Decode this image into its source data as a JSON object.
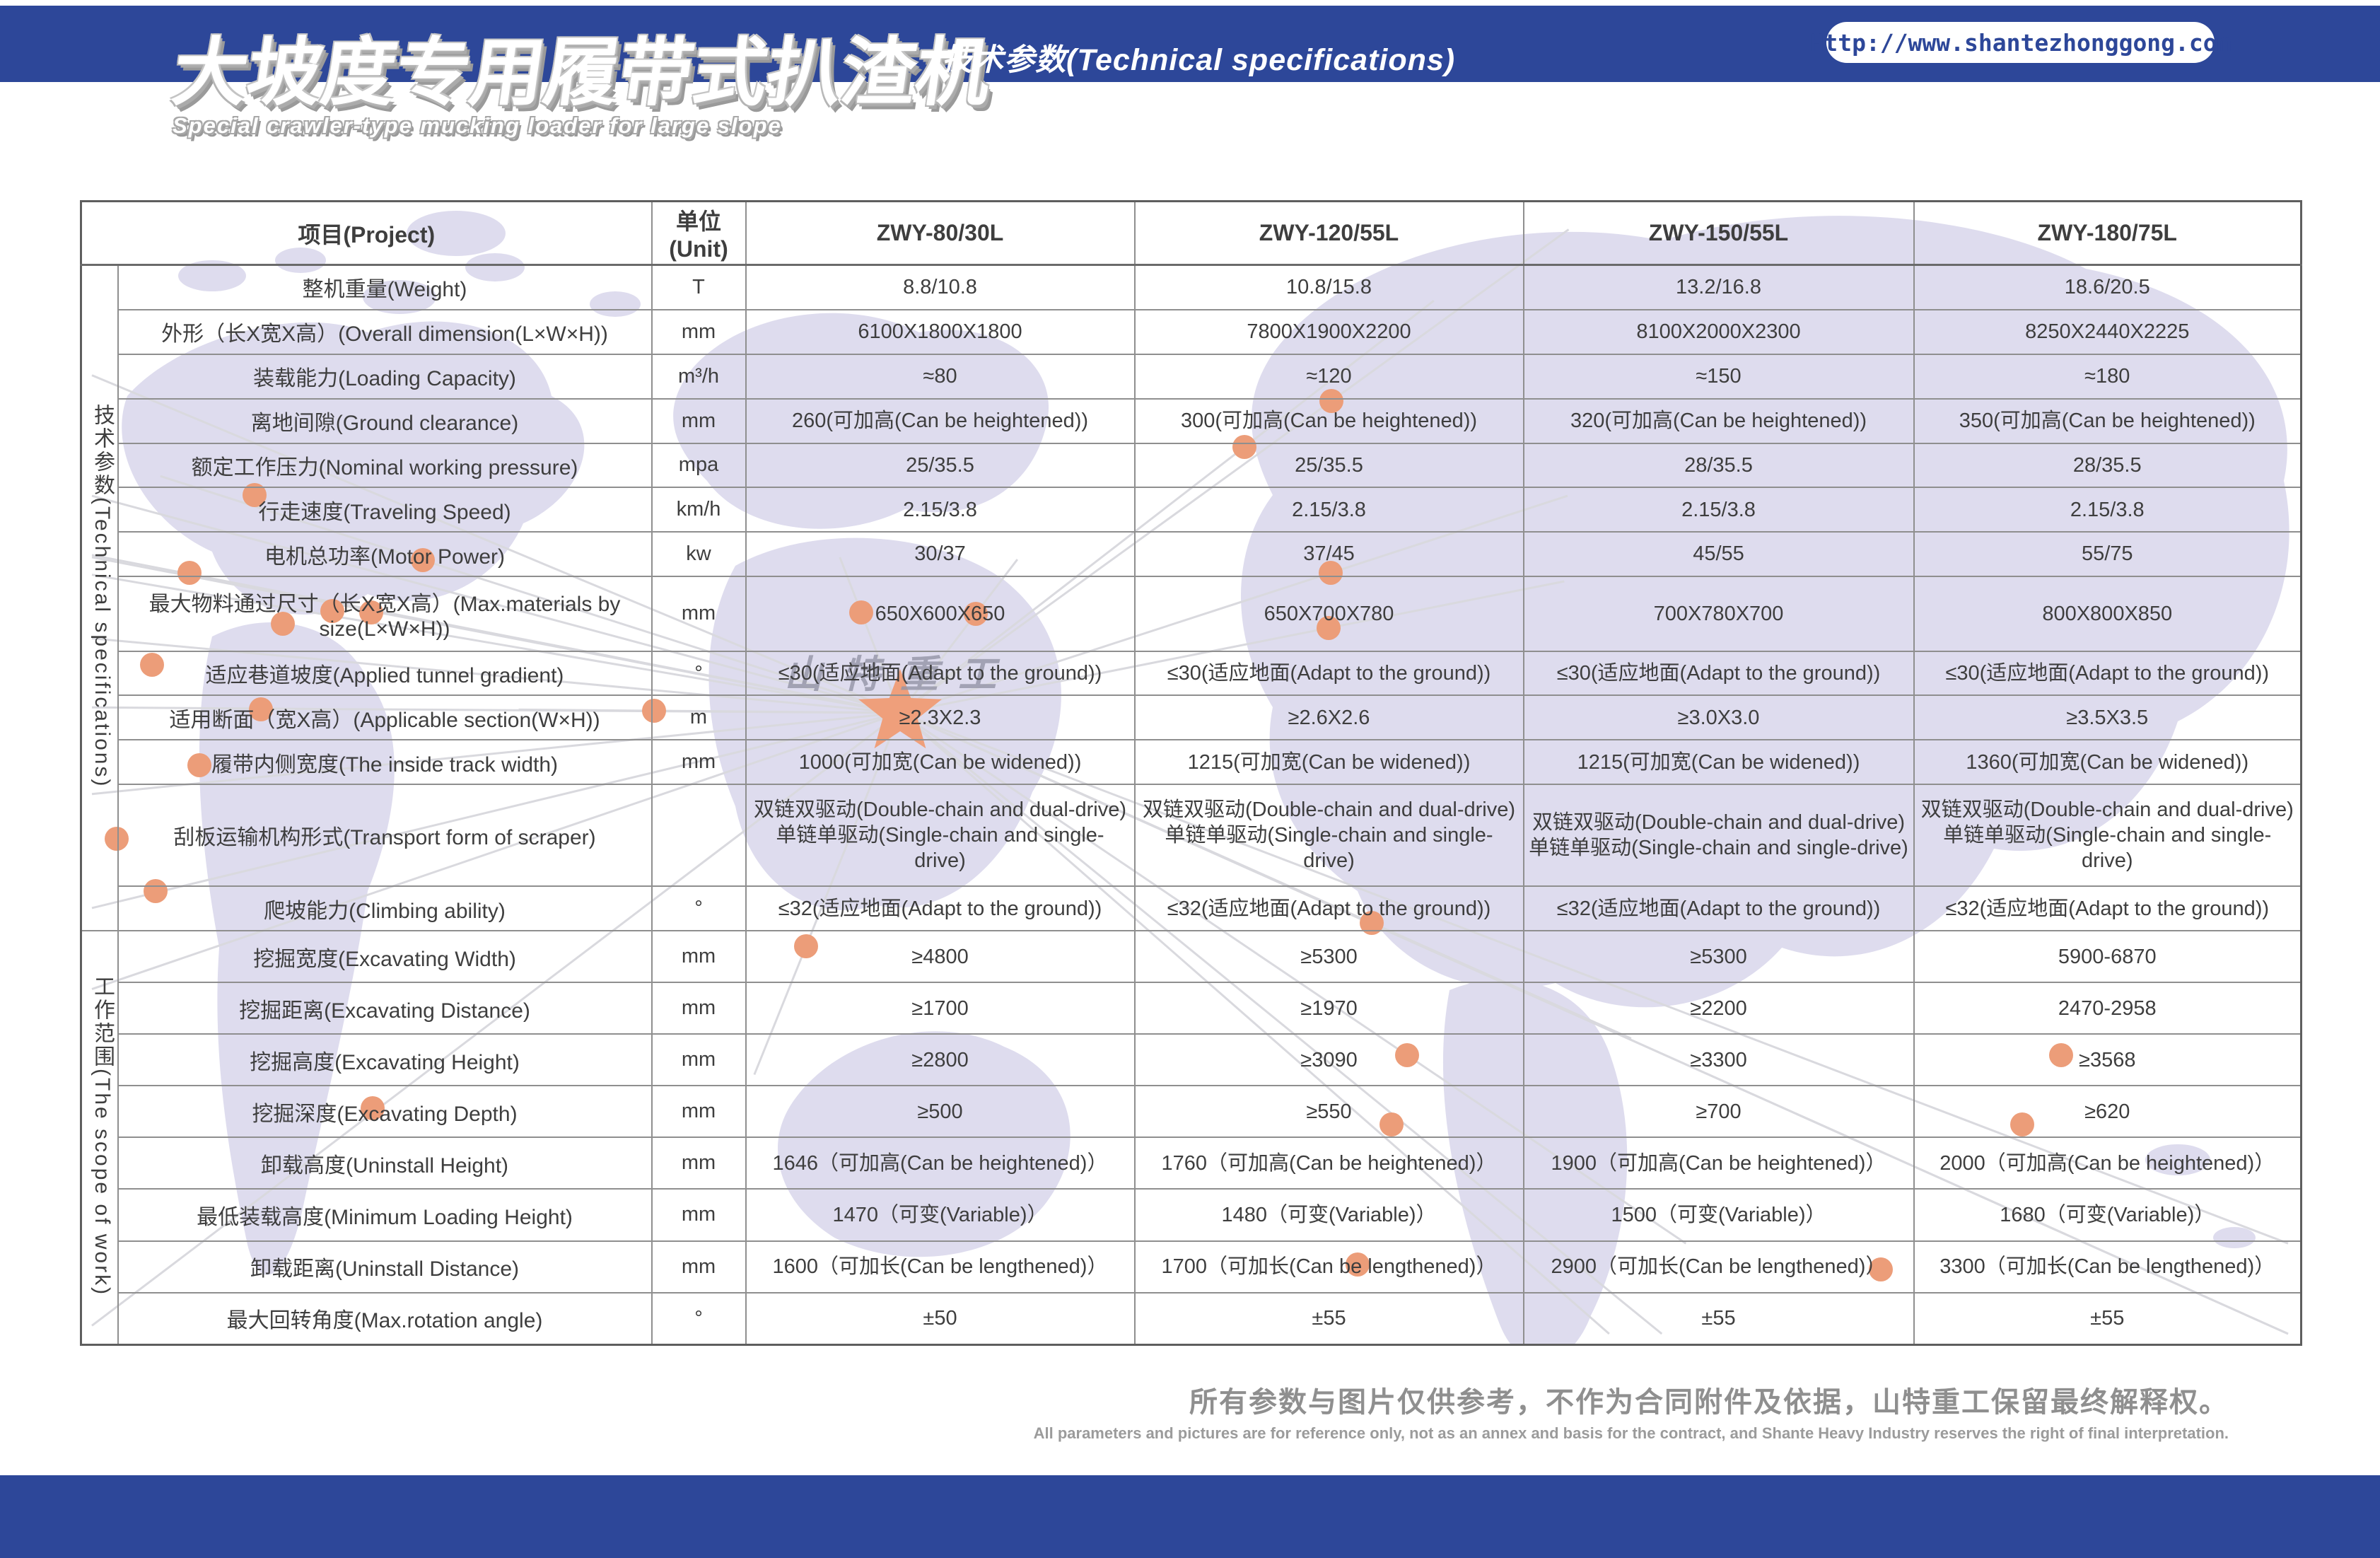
{
  "header": {
    "title_cn": "大坡度专用履带式扒渣机",
    "title_en": "Special crawler-type mucking loader for large slope",
    "tech_params_title": "技术参数(Technical specifications)",
    "website": "Http://www.shantezhonggong.com"
  },
  "watermark": "山特重工",
  "table": {
    "columns": [
      "项目(Project)",
      "单位(Unit)",
      "ZWY-80/30L",
      "ZWY-120/55L",
      "ZWY-150/55L",
      "ZWY-180/75L"
    ],
    "sections": [
      {
        "label": "技术参数(Technical specifications)",
        "rows": [
          {
            "project": "整机重量(Weight)",
            "unit": "T",
            "values": [
              "8.8/10.8",
              "10.8/15.8",
              "13.2/16.8",
              "18.6/20.5"
            ]
          },
          {
            "project": "外形（长X宽X高）(Overall dimension(L×W×H))",
            "unit": "mm",
            "values": [
              "6100X1800X1800",
              "7800X1900X2200",
              "8100X2000X2300",
              "8250X2440X2225"
            ]
          },
          {
            "project": "装载能力(Loading Capacity)",
            "unit": "m³/h",
            "values": [
              "≈80",
              "≈120",
              "≈150",
              "≈180"
            ]
          },
          {
            "project": "离地间隙(Ground clearance)",
            "unit": "mm",
            "values": [
              "260(可加高(Can be heightened))",
              "300(可加高(Can be heightened))",
              "320(可加高(Can be heightened))",
              "350(可加高(Can be heightened))"
            ]
          },
          {
            "project": "额定工作压力(Nominal working pressure)",
            "unit": "mpa",
            "values": [
              "25/35.5",
              "25/35.5",
              "28/35.5",
              "28/35.5"
            ]
          },
          {
            "project": "行走速度(Traveling Speed)",
            "unit": "km/h",
            "values": [
              "2.15/3.8",
              "2.15/3.8",
              "2.15/3.8",
              "2.15/3.8"
            ]
          },
          {
            "project": "电机总功率(Motor Power)",
            "unit": "kw",
            "values": [
              "30/37",
              "37/45",
              "45/55",
              "55/75"
            ]
          },
          {
            "project": "最大物料通过尺寸（长X宽X高）(Max.materials by size(L×W×H))",
            "unit": "mm",
            "values": [
              "650X600X650",
              "650X700X780",
              "700X780X700",
              "800X800X850"
            ]
          },
          {
            "project": "适应巷道坡度(Applied tunnel gradient)",
            "unit": "°",
            "values": [
              "≤30(适应地面(Adapt to the ground))",
              "≤30(适应地面(Adapt to the ground))",
              "≤30(适应地面(Adapt to the ground))",
              "≤30(适应地面(Adapt to the ground))"
            ]
          },
          {
            "project": "适用断面（宽X高）(Applicable section(W×H))",
            "unit": "m",
            "values": [
              "≥2.3X2.3",
              "≥2.6X2.6",
              "≥3.0X3.0",
              "≥3.5X3.5"
            ]
          },
          {
            "project": "履带内侧宽度(The inside track width)",
            "unit": "mm",
            "values": [
              "1000(可加宽(Can be widened))",
              "1215(可加宽(Can be widened))",
              "1215(可加宽(Can be widened))",
              "1360(可加宽(Can be widened))"
            ]
          },
          {
            "project": "刮板运输机构形式(Transport form of scraper)",
            "unit": "",
            "values": [
              "双链双驱动(Double-chain and dual-drive)\n单链单驱动(Single-chain and single-drive)",
              "双链双驱动(Double-chain and dual-drive)\n单链单驱动(Single-chain and single-drive)",
              "双链双驱动(Double-chain and dual-drive)\n单链单驱动(Single-chain and single-drive)",
              "双链双驱动(Double-chain and dual-drive)\n单链单驱动(Single-chain and single-drive)"
            ]
          },
          {
            "project": "爬坡能力(Climbing ability)",
            "unit": "°",
            "values": [
              "≤32(适应地面(Adapt to the ground))",
              "≤32(适应地面(Adapt to the ground))",
              "≤32(适应地面(Adapt to the ground))",
              "≤32(适应地面(Adapt to the ground))"
            ]
          }
        ]
      },
      {
        "label": "工作范围(The scope of work)",
        "rows": [
          {
            "project": "挖掘宽度(Excavating Width)",
            "unit": "mm",
            "values": [
              "≥4800",
              "≥5300",
              "≥5300",
              "5900-6870"
            ]
          },
          {
            "project": "挖掘距离(Excavating Distance)",
            "unit": "mm",
            "values": [
              "≥1700",
              "≥1970",
              "≥2200",
              "2470-2958"
            ]
          },
          {
            "project": "挖掘高度(Excavating Height)",
            "unit": "mm",
            "values": [
              "≥2800",
              "≥3090",
              "≥3300",
              "≥3568"
            ]
          },
          {
            "project": "挖掘深度(Excavating Depth)",
            "unit": "mm",
            "values": [
              "≥500",
              "≥550",
              "≥700",
              "≥620"
            ]
          },
          {
            "project": "卸载高度(Uninstall Height)",
            "unit": "mm",
            "values": [
              "1646（可加高(Can be heightened)）",
              "1760（可加高(Can be heightened)）",
              "1900（可加高(Can be heightened)）",
              "2000（可加高(Can be heightened)）"
            ]
          },
          {
            "project": "最低装载高度(Minimum Loading Height)",
            "unit": "mm",
            "values": [
              "1470（可变(Variable)）",
              "1480（可变(Variable)）",
              "1500（可变(Variable)）",
              "1680（可变(Variable)）"
            ]
          },
          {
            "project": "卸载距离(Uninstall Distance)",
            "unit": "mm",
            "values": [
              "1600（可加长(Can be lengthened)）",
              "1700（可加长(Can be lengthened)）",
              "2900（可加长(Can be lengthened)）",
              "3300（可加长(Can be lengthened)）"
            ]
          },
          {
            "project": "最大回转角度(Max.rotation angle)",
            "unit": "°",
            "values": [
              "±50",
              "±55",
              "±55",
              "±55"
            ]
          }
        ]
      }
    ]
  },
  "footer": {
    "disclaimer_cn": "所有参数与图片仅供参考，不作为合同附件及依据，山特重工保留最终解释权。",
    "disclaimer_en": "All parameters and pictures are for reference only, not as an annex and basis for the contract, and Shante Heavy Industry reserves the right of final interpretation."
  },
  "colors": {
    "brand_blue": "#2d4799",
    "dot_orange": "#ec9d79",
    "map_lavender": "#dedcee",
    "border_gray": "#8f8f8f"
  }
}
